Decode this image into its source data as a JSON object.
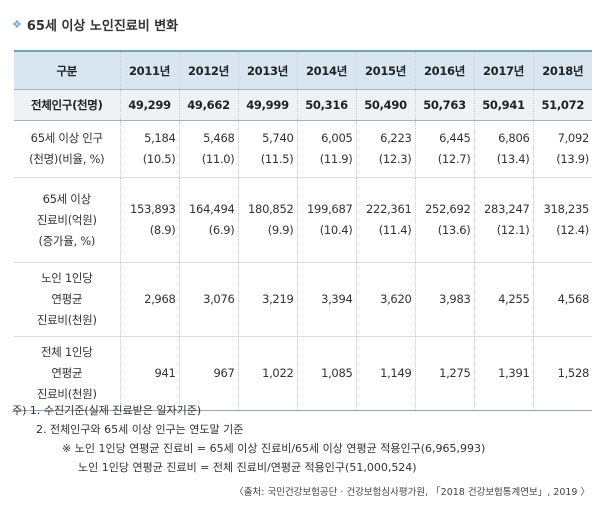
{
  "title": "65세 이상 노인진료비 변화",
  "table": {
    "header": [
      "구분",
      "2011년",
      "2012년",
      "2013년",
      "2014년",
      "2015년",
      "2016년",
      "2017년",
      "2018년"
    ],
    "total_row": {
      "label": "전체인구(천명)",
      "values": [
        "49,299",
        "49,662",
        "49,999",
        "50,316",
        "50,490",
        "50,763",
        "50,941",
        "51,072"
      ]
    },
    "elderly_row": {
      "label_lines": [
        "65세 이상 인구",
        "(천명)(비율, %)"
      ],
      "values": [
        "5,184",
        "5,468",
        "5,740",
        "6,005",
        "6,223",
        "6,445",
        "6,806",
        "7,092"
      ],
      "ratios": [
        "(10.5)",
        "(11.0)",
        "(11.5)",
        "(11.9)",
        "(12.3)",
        "(12.7)",
        "(13.4)",
        "(13.9)"
      ]
    },
    "cost_row": {
      "label_lines": [
        "65세 이상",
        "진료비(억원)",
        "(증가율, %)"
      ],
      "values": [
        "153,893",
        "164,494",
        "180,852",
        "199,687",
        "222,361",
        "252,692",
        "283,247",
        "318,235"
      ],
      "rates": [
        "(8.9)",
        "(6.9)",
        "(9.9)",
        "(10.4)",
        "(11.4)",
        "(13.6)",
        "(12.1)",
        "(12.4)"
      ]
    },
    "elderly_avg_row": {
      "label_lines": [
        "노인 1인당",
        "연평균",
        "진료비(천원)"
      ],
      "values": [
        "2,968",
        "3,076",
        "3,219",
        "3,394",
        "3,620",
        "3,983",
        "4,255",
        "4,568"
      ]
    },
    "all_avg_row": {
      "label_lines": [
        "전체 1인당",
        "연평균",
        "진료비(천원)"
      ],
      "values": [
        "941",
        "967",
        "1,022",
        "1,085",
        "1,149",
        "1,275",
        "1,391",
        "1,528"
      ]
    }
  },
  "notes": {
    "line1": "주) 1. 수진기준(실제 진료받은 일자기준)",
    "line2": "2. 전체인구와 65세 이상 인구는 연도말 기준",
    "line3": "※ 노인 1인당 연평균 진료비 = 65세 이상 진료비/65세 이상 연평균 적용인구(6,965,993)",
    "line4": "노인 1인당 연평균 진료비 = 전체 진료비/연평균 적용인구(51,000,524)"
  },
  "source": "〈출처: 국민건강보험공단 · 건강보험심사평가원, 「2018 건강보험통계연보」, 2019 〉"
}
